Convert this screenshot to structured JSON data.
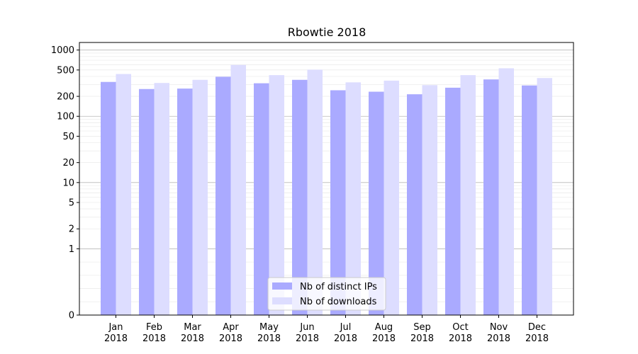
{
  "chart_data": {
    "type": "bar",
    "title": "Rbowtie 2018",
    "xlabel": "",
    "ylabel": "",
    "yscale": "symlog",
    "ylim": [
      0,
      1300
    ],
    "yticks": [
      0,
      1,
      2,
      5,
      10,
      20,
      50,
      100,
      200,
      500,
      1000
    ],
    "grid": true,
    "legend_position": "bottom-center",
    "categories": [
      "Jan\n2018",
      "Feb\n2018",
      "Mar\n2018",
      "Apr\n2018",
      "May\n2018",
      "Jun\n2018",
      "Jul\n2018",
      "Aug\n2018",
      "Sep\n2018",
      "Oct\n2018",
      "Nov\n2018",
      "Dec\n2018"
    ],
    "series": [
      {
        "name": "Nb of distinct IPs",
        "color": "#aaaaff",
        "values": [
          330,
          258,
          262,
          395,
          315,
          355,
          247,
          235,
          215,
          270,
          360,
          292
        ]
      },
      {
        "name": "Nb of downloads",
        "color": "#ddddff",
        "values": [
          435,
          318,
          355,
          595,
          418,
          505,
          325,
          345,
          295,
          418,
          530,
          378
        ]
      }
    ]
  }
}
